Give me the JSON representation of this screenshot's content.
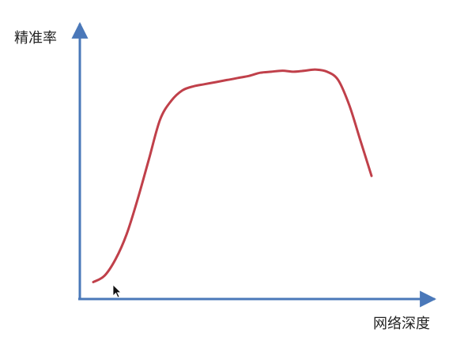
{
  "chart_data": {
    "type": "line",
    "title": "",
    "xlabel": "网络深度",
    "ylabel": "精准率",
    "ticks": "none",
    "grid": false,
    "legend": "none",
    "axis_color": "#4a78b9",
    "series": [
      {
        "color": "#c0404a",
        "x": [
          0.0,
          0.04,
          0.08,
          0.12,
          0.16,
          0.2,
          0.24,
          0.28,
          0.32,
          0.36,
          0.4,
          0.44,
          0.48,
          0.52,
          0.56,
          0.6,
          0.64,
          0.68,
          0.72,
          0.76,
          0.8,
          0.84,
          0.88,
          0.92,
          0.96,
          1.0
        ],
        "y": [
          0.07,
          0.1,
          0.18,
          0.3,
          0.47,
          0.66,
          0.85,
          0.94,
          0.99,
          1.01,
          1.02,
          1.03,
          1.04,
          1.05,
          1.06,
          1.075,
          1.08,
          1.085,
          1.08,
          1.085,
          1.09,
          1.08,
          1.04,
          0.92,
          0.75,
          0.58
        ]
      }
    ]
  },
  "cursor": "mouse-pointer-icon"
}
